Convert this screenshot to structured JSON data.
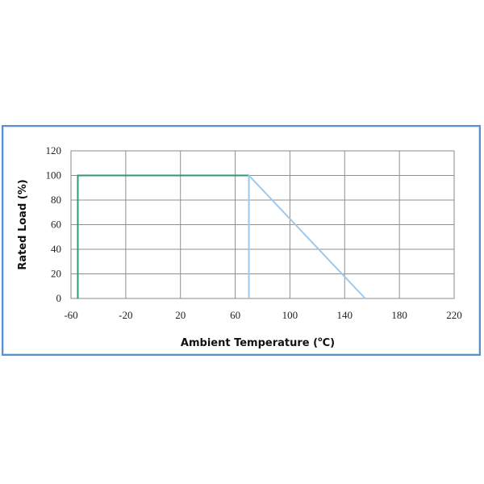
{
  "chart_data": {
    "type": "line",
    "title": "",
    "xlabel_main": "Ambient Temperature (",
    "xlabel_degree": "o",
    "xlabel_tail": "C)",
    "ylabel": "Rated Load (%)",
    "xlim": [
      -60,
      220
    ],
    "ylim": [
      0,
      120
    ],
    "x_ticks": [
      -60,
      -20,
      20,
      60,
      100,
      140,
      180,
      220
    ],
    "x_tick_labels": [
      "-60",
      "-20",
      "20",
      "60",
      "100",
      "140",
      "180",
      "220"
    ],
    "y_ticks": [
      0,
      20,
      40,
      60,
      80,
      100,
      120
    ],
    "y_tick_labels": [
      "0",
      "20",
      "40",
      "60",
      "80",
      "100",
      "120"
    ],
    "grid": true,
    "series": [
      {
        "color": "#2e9a6e",
        "x": [
          -55,
          -55,
          70
        ],
        "y": [
          0,
          100,
          100
        ]
      },
      {
        "color": "#9cc9ee",
        "x": [
          70,
          70,
          155
        ],
        "y": [
          0,
          100,
          0
        ]
      }
    ]
  }
}
